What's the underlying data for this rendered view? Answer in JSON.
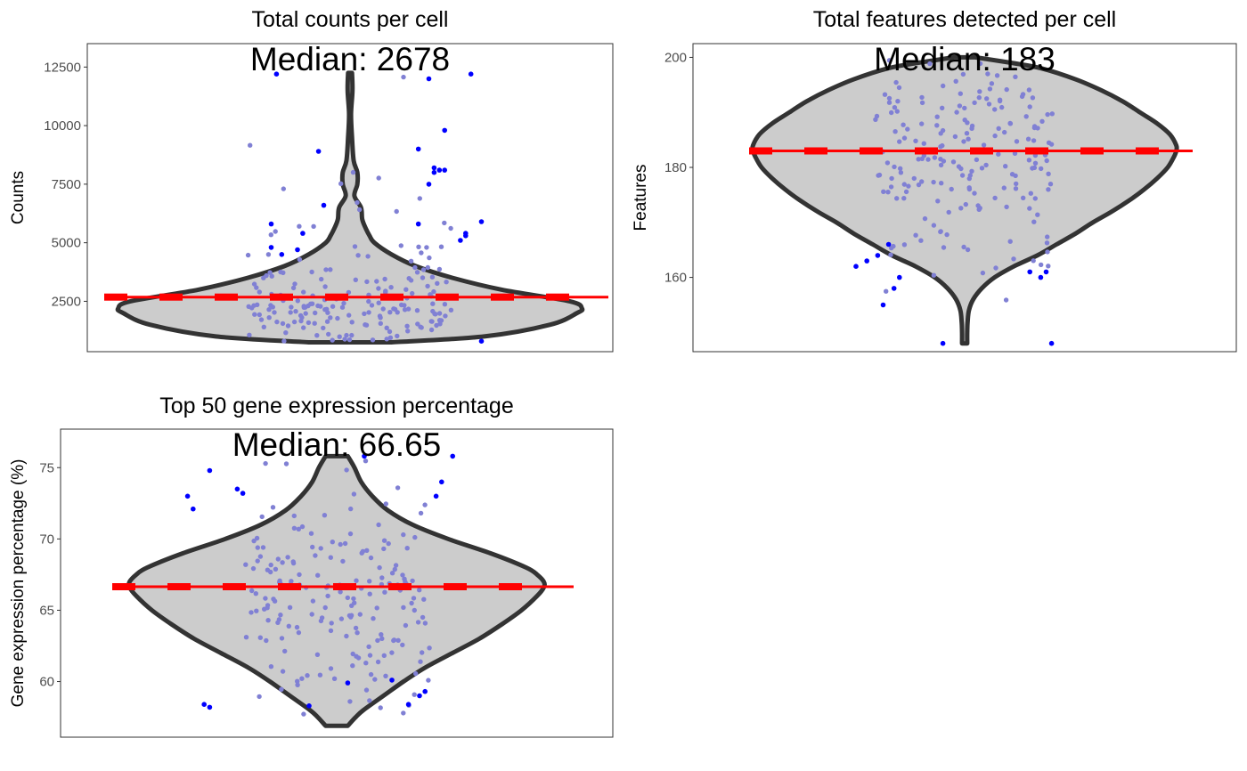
{
  "chart_data": [
    {
      "type": "violin",
      "title": "Total counts per cell",
      "annotation": "Median: 2678",
      "xlabel": "",
      "ylabel": "Counts",
      "ylim": [
        350,
        13500
      ],
      "yticks": [
        2500,
        5000,
        7500,
        10000,
        12500
      ],
      "ytick_labels": [
        "2500",
        "5000",
        "7500",
        "10000",
        "12500"
      ],
      "median": 2678,
      "min": 750,
      "max": 12250,
      "density_profile": [
        [
          750,
          0.17
        ],
        [
          1000,
          0.55
        ],
        [
          1500,
          0.82
        ],
        [
          2000,
          0.93
        ],
        [
          2200,
          0.95
        ],
        [
          2500,
          0.9
        ],
        [
          3000,
          0.62
        ],
        [
          3500,
          0.42
        ],
        [
          4000,
          0.27
        ],
        [
          4500,
          0.17
        ],
        [
          5000,
          0.1
        ],
        [
          5300,
          0.08
        ],
        [
          5600,
          0.065
        ],
        [
          6000,
          0.05
        ],
        [
          6500,
          0.045
        ],
        [
          7000,
          0.018
        ],
        [
          7500,
          0.03
        ],
        [
          8000,
          0.03
        ],
        [
          8500,
          0.015
        ],
        [
          9500,
          0.008
        ],
        [
          10500,
          0.004
        ],
        [
          11500,
          0.01
        ],
        [
          12250,
          0.008
        ]
      ],
      "outlier_points": [
        [
          0.36,
          12200
        ],
        [
          0.65,
          12000
        ],
        [
          0.73,
          12200
        ],
        [
          0.68,
          9800
        ],
        [
          0.63,
          9000
        ],
        [
          0.44,
          8900
        ],
        [
          0.66,
          8200
        ],
        [
          0.66,
          8000
        ],
        [
          0.67,
          8100
        ],
        [
          0.68,
          8100
        ],
        [
          0.65,
          7500
        ],
        [
          0.45,
          6600
        ],
        [
          0.35,
          5800
        ],
        [
          0.41,
          5400
        ],
        [
          0.63,
          5800
        ],
        [
          0.71,
          5100
        ],
        [
          0.72,
          5400
        ],
        [
          0.75,
          5900
        ],
        [
          0.72,
          5300
        ],
        [
          0.35,
          4800
        ],
        [
          0.37,
          4500
        ],
        [
          0.4,
          4700
        ],
        [
          0.75,
          800
        ]
      ],
      "colors": {
        "violin_fill": "#cccccc",
        "violin_outline": "#333333",
        "median_line": "#ff0000",
        "outlier": "#0000ff",
        "cell": "#8080d4"
      }
    },
    {
      "type": "violin",
      "title": "Total features detected per cell",
      "annotation": "Median: 183",
      "xlabel": "",
      "ylabel": "Features",
      "ylim": [
        146.5,
        202.5
      ],
      "yticks": [
        160,
        180,
        200
      ],
      "ytick_labels": [
        "160",
        "180",
        "200"
      ],
      "median": 183,
      "min": 148,
      "max": 200,
      "density_profile": [
        [
          148,
          0.012
        ],
        [
          150,
          0.012
        ],
        [
          152,
          0.014
        ],
        [
          154,
          0.02
        ],
        [
          156,
          0.04
        ],
        [
          158,
          0.08
        ],
        [
          160,
          0.14
        ],
        [
          162,
          0.23
        ],
        [
          164,
          0.34
        ],
        [
          166,
          0.43
        ],
        [
          168,
          0.52
        ],
        [
          170,
          0.6
        ],
        [
          172,
          0.69
        ],
        [
          174,
          0.77
        ],
        [
          176,
          0.84
        ],
        [
          178,
          0.9
        ],
        [
          180,
          0.95
        ],
        [
          182,
          0.98
        ],
        [
          183,
          0.99
        ],
        [
          184,
          0.99
        ],
        [
          186,
          0.96
        ],
        [
          188,
          0.9
        ],
        [
          190,
          0.82
        ],
        [
          192,
          0.74
        ],
        [
          194,
          0.64
        ],
        [
          196,
          0.52
        ],
        [
          198,
          0.36
        ],
        [
          199,
          0.22
        ],
        [
          200,
          0.05
        ]
      ],
      "outlier_points": [
        [
          0.3,
          162
        ],
        [
          0.32,
          163
        ],
        [
          0.34,
          164
        ],
        [
          0.36,
          166
        ],
        [
          0.35,
          155
        ],
        [
          0.37,
          158
        ],
        [
          0.38,
          160
        ],
        [
          0.46,
          148
        ],
        [
          0.62,
          161
        ],
        [
          0.64,
          160
        ],
        [
          0.65,
          161
        ],
        [
          0.66,
          148
        ]
      ],
      "colors": {
        "violin_fill": "#cccccc",
        "violin_outline": "#333333",
        "median_line": "#ff0000",
        "outlier": "#0000ff",
        "cell": "#8080d4"
      }
    },
    {
      "type": "violin",
      "title": "Top 50 gene expression percentage",
      "annotation": "Median: 66.65",
      "xlabel": "",
      "ylabel": "Gene expression percentage (%)",
      "ylim": [
        56.1,
        77.7
      ],
      "yticks": [
        60,
        65,
        70,
        75
      ],
      "ytick_labels": [
        "60",
        "65",
        "70",
        "75"
      ],
      "median": 66.65,
      "min": 56.9,
      "max": 75.8,
      "density_profile": [
        [
          56.9,
          0.05
        ],
        [
          57.5,
          0.085
        ],
        [
          58,
          0.12
        ],
        [
          59,
          0.21
        ],
        [
          60,
          0.3
        ],
        [
          61,
          0.4
        ],
        [
          62,
          0.52
        ],
        [
          63,
          0.64
        ],
        [
          64,
          0.74
        ],
        [
          65,
          0.83
        ],
        [
          66,
          0.9
        ],
        [
          66.6,
          0.93
        ],
        [
          67,
          0.93
        ],
        [
          67.5,
          0.9
        ],
        [
          68,
          0.85
        ],
        [
          69,
          0.69
        ],
        [
          70,
          0.5
        ],
        [
          71,
          0.34
        ],
        [
          72,
          0.23
        ],
        [
          73,
          0.16
        ],
        [
          74,
          0.11
        ],
        [
          75,
          0.08
        ],
        [
          75.8,
          0.05
        ]
      ],
      "outlier_points": [
        [
          0.26,
          58.4
        ],
        [
          0.27,
          58.2
        ],
        [
          0.23,
          73
        ],
        [
          0.24,
          72.1
        ],
        [
          0.27,
          74.8
        ],
        [
          0.32,
          73.5
        ],
        [
          0.33,
          73.2
        ],
        [
          0.45,
          58.3
        ],
        [
          0.55,
          75.8
        ],
        [
          0.63,
          58.4
        ],
        [
          0.65,
          59
        ],
        [
          0.66,
          59.3
        ],
        [
          0.6,
          60.1
        ],
        [
          0.68,
          73
        ],
        [
          0.69,
          74
        ],
        [
          0.71,
          75.8
        ],
        [
          0.52,
          59.9
        ]
      ],
      "colors": {
        "violin_fill": "#cccccc",
        "violin_outline": "#333333",
        "median_line": "#ff0000",
        "outlier": "#0000ff",
        "cell": "#8080d4"
      }
    }
  ]
}
